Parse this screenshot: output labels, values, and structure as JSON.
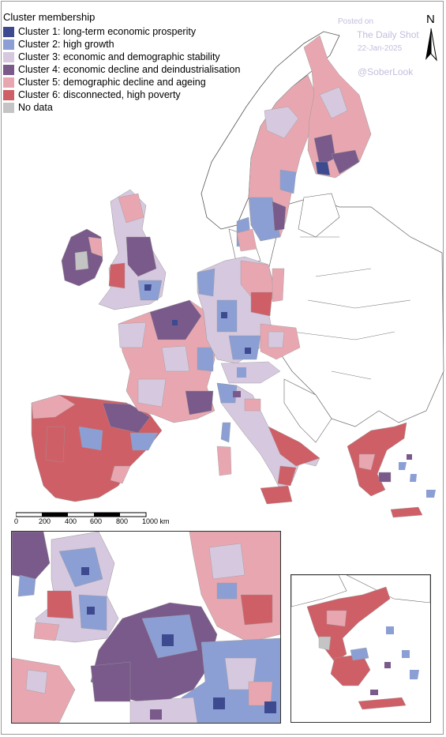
{
  "legend": {
    "title": "Cluster membership",
    "items": [
      {
        "label": "Cluster 1: long-term economic prosperity",
        "color": "#3d4a8f"
      },
      {
        "label": "Cluster 2: high growth",
        "color": "#8c9fd4"
      },
      {
        "label": "Cluster 3: economic and demographic stability",
        "color": "#d6c8de"
      },
      {
        "label": "Cluster 4: economic decline and deindustrialisation",
        "color": "#7a5a8a"
      },
      {
        "label": "Cluster 5: demographic decline and ageing",
        "color": "#e8a7b0"
      },
      {
        "label": "Cluster 6: disconnected, high poverty",
        "color": "#cf5f66"
      },
      {
        "label": "No data",
        "color": "#c4c4c4"
      }
    ]
  },
  "watermark": {
    "posted_on": "Posted on",
    "source": "The Daily Shot",
    "date": "22-Jan-2025",
    "handle": "@SoberLook"
  },
  "north_arrow": {
    "label": "N"
  },
  "scale_bar": {
    "ticks": [
      "0",
      "200",
      "400",
      "600",
      "800",
      "1000 km"
    ]
  },
  "colors": {
    "outline_land": "#ffffff",
    "outline_stroke": "#555555"
  }
}
